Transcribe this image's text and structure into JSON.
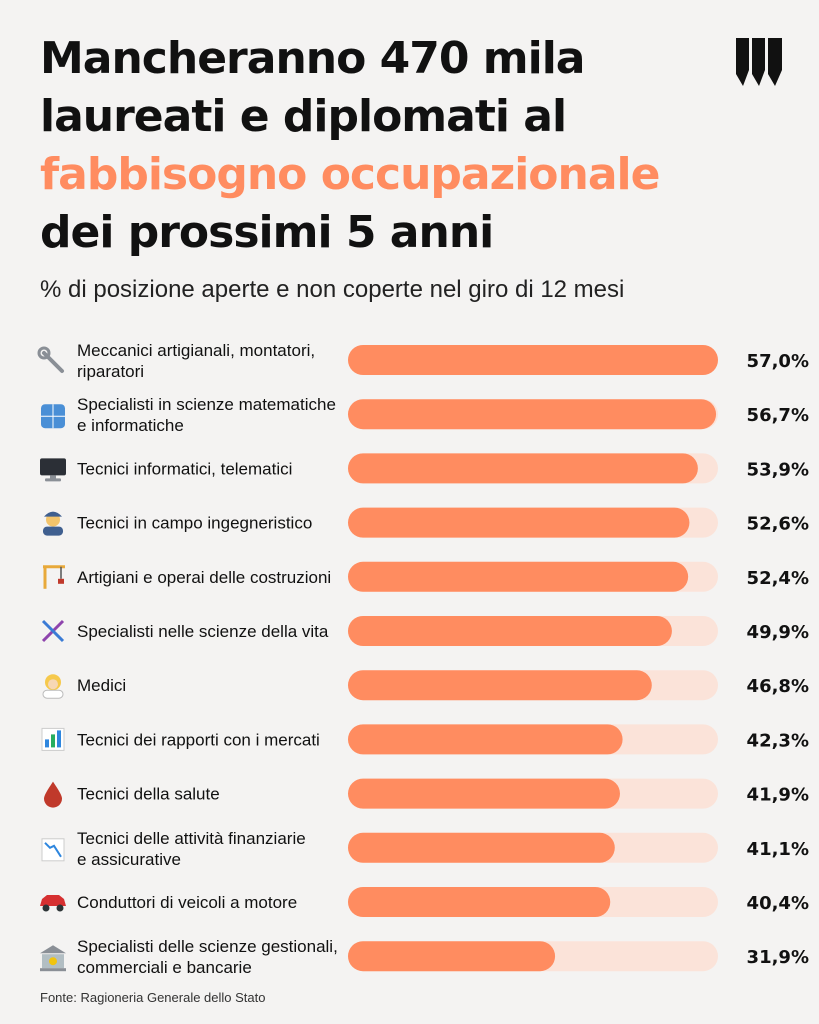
{
  "header": {
    "title_line1": "Mancheranno 470 mila",
    "title_line2": "laureati e diplomati al",
    "title_line3": "fabbisogno occupazionale",
    "title_line4": "dei prossimi 5 anni",
    "subtitle": "% di posizione aperte e non coperte nel giro di 12 mesi",
    "logo_icon": "brand-logo-icon"
  },
  "colors": {
    "bar": "#ff8c60",
    "track": "#fbe3d9",
    "highlight": "#ff8c60"
  },
  "chart_data": {
    "type": "bar",
    "orientation": "horizontal",
    "title": "Mancheranno 470 mila laureati e diplomati al fabbisogno occupazionale dei prossimi 5 anni",
    "subtitle": "% di posizione aperte e non coperte nel giro di 12 mesi",
    "xlim": [
      0,
      57.0
    ],
    "categories": [
      "Meccanici artigianali, montatori, riparatori",
      "Specialisti in scienze matematiche e informatiche",
      "Tecnici informatici, telematici",
      "Tecnici in campo ingegneristico",
      "Artigiani e operai delle costruzioni",
      "Specialisti nelle scienze della vita",
      "Medici",
      "Tecnici dei rapporti con i mercati",
      "Tecnici della salute",
      "Tecnici delle attività finanziarie e assicurative",
      "Conduttori di veicoli a motore",
      "Specialisti delle scienze gestionali, commerciali e bancarie"
    ],
    "label_lines": [
      [
        "Meccanici artigianali, montatori,",
        "riparatori"
      ],
      [
        "Specialisti in scienze matematiche",
        "e informatiche"
      ],
      [
        "Tecnici informatici, telematici"
      ],
      [
        "Tecnici in campo ingegneristico"
      ],
      [
        "Artigiani e operai delle costruzioni"
      ],
      [
        "Specialisti nelle scienze della vita"
      ],
      [
        "Medici"
      ],
      [
        "Tecnici dei rapporti con i mercati"
      ],
      [
        "Tecnici della salute"
      ],
      [
        "Tecnici delle attività finanziarie",
        "e assicurative"
      ],
      [
        "Conduttori di veicoli a motore"
      ],
      [
        "Specialisti delle scienze gestionali,",
        "commerciali e bancarie"
      ]
    ],
    "values": [
      57.0,
      56.7,
      53.9,
      52.6,
      52.4,
      49.9,
      46.8,
      42.3,
      41.9,
      41.1,
      40.4,
      31.9
    ],
    "value_labels": [
      "57,0%",
      "56,7%",
      "53,9%",
      "52,6%",
      "52,4%",
      "49,9%",
      "46,8%",
      "42,3%",
      "41,9%",
      "41,1%",
      "40,4%",
      "31,9%"
    ],
    "icons": [
      "wrench-icon",
      "numbers-icon",
      "monitor-icon",
      "engineer-icon",
      "crane-icon",
      "dna-icon",
      "doctor-icon",
      "bar-chart-icon",
      "blood-drop-icon",
      "chart-decreasing-icon",
      "car-icon",
      "bank-icon"
    ]
  },
  "footer": {
    "source": "Fonte: Ragioneria Generale dello Stato"
  }
}
